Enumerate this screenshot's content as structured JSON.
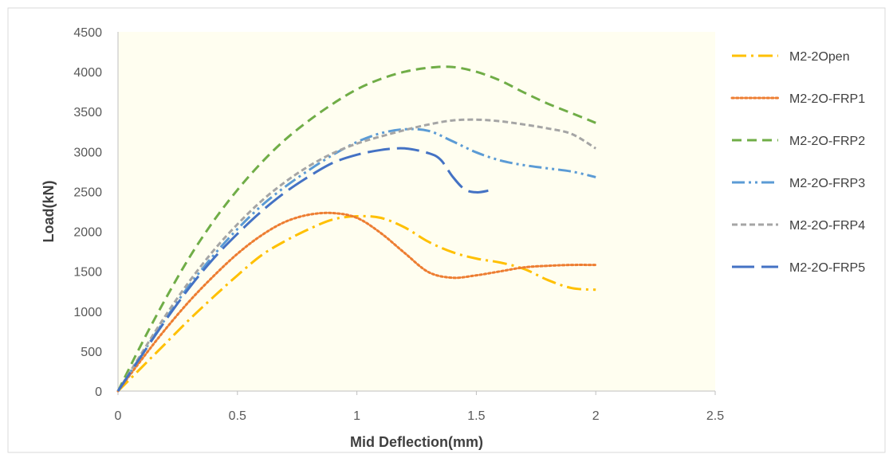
{
  "chart_data": {
    "type": "line",
    "title": "",
    "xlabel": "Mid Deflection(mm)",
    "ylabel": "Load(kN)",
    "xlim": [
      0,
      2.5
    ],
    "ylim": [
      0,
      4500
    ],
    "xticks": [
      0,
      0.5,
      1,
      1.5,
      2,
      2.5
    ],
    "xtick_labels": [
      "0",
      "0.5",
      "1",
      "1.5",
      "2",
      "2.5"
    ],
    "yticks": [
      0,
      500,
      1000,
      1500,
      2000,
      2500,
      3000,
      3500,
      4000,
      4500
    ],
    "ytick_labels": [
      "0",
      "500",
      "1000",
      "1500",
      "2000",
      "2500",
      "3000",
      "3500",
      "4000",
      "4500"
    ],
    "grid": false,
    "plot_background": "#fffef0",
    "legend_position": "right",
    "series": [
      {
        "name": "M2-2Open",
        "color": "#ffc000",
        "dash": "dashdot",
        "x": [
          0,
          0.1,
          0.2,
          0.3,
          0.4,
          0.5,
          0.6,
          0.7,
          0.8,
          0.9,
          1.0,
          1.1,
          1.2,
          1.3,
          1.4,
          1.5,
          1.6,
          1.7,
          1.8,
          1.9,
          2.0
        ],
        "y": [
          0,
          300,
          600,
          900,
          1180,
          1450,
          1700,
          1880,
          2030,
          2150,
          2190,
          2170,
          2050,
          1870,
          1740,
          1660,
          1610,
          1530,
          1390,
          1290,
          1270
        ]
      },
      {
        "name": "M2-2O-FRP1",
        "color": "#ed7d31",
        "dash": "dot",
        "x": [
          0,
          0.1,
          0.2,
          0.3,
          0.4,
          0.5,
          0.6,
          0.7,
          0.8,
          0.9,
          1.0,
          1.1,
          1.2,
          1.3,
          1.4,
          1.5,
          1.6,
          1.7,
          1.8,
          1.9,
          2.0
        ],
        "y": [
          0,
          400,
          780,
          1130,
          1440,
          1720,
          1950,
          2120,
          2210,
          2230,
          2170,
          1980,
          1730,
          1490,
          1420,
          1450,
          1500,
          1550,
          1570,
          1580,
          1580
        ]
      },
      {
        "name": "M2-2O-FRP2",
        "color": "#70ad47",
        "dash": "dash",
        "x": [
          0,
          0.1,
          0.2,
          0.3,
          0.4,
          0.5,
          0.6,
          0.7,
          0.8,
          0.9,
          1.0,
          1.1,
          1.2,
          1.3,
          1.4,
          1.5,
          1.6,
          1.7,
          1.8,
          1.9,
          2.0
        ],
        "y": [
          0,
          600,
          1160,
          1680,
          2130,
          2520,
          2860,
          3150,
          3390,
          3600,
          3780,
          3910,
          4000,
          4050,
          4060,
          4000,
          3890,
          3740,
          3600,
          3480,
          3360
        ]
      },
      {
        "name": "M2-2O-FRP3",
        "color": "#5b9bd5",
        "dash": "dashdotdot",
        "x": [
          0,
          0.1,
          0.2,
          0.3,
          0.4,
          0.5,
          0.6,
          0.7,
          0.8,
          0.9,
          1.0,
          1.1,
          1.2,
          1.3,
          1.4,
          1.5,
          1.6,
          1.7,
          1.8,
          1.9,
          2.0
        ],
        "y": [
          0,
          460,
          910,
          1330,
          1700,
          2030,
          2320,
          2560,
          2770,
          2960,
          3120,
          3230,
          3280,
          3260,
          3130,
          2990,
          2890,
          2830,
          2790,
          2750,
          2680
        ]
      },
      {
        "name": "M2-2O-FRP4",
        "color": "#a5a5a5",
        "dash": "dash-short",
        "x": [
          0,
          0.1,
          0.2,
          0.3,
          0.4,
          0.5,
          0.6,
          0.7,
          0.8,
          0.9,
          1.0,
          1.1,
          1.2,
          1.3,
          1.4,
          1.5,
          1.6,
          1.7,
          1.8,
          1.9,
          2.0
        ],
        "y": [
          0,
          480,
          950,
          1380,
          1760,
          2090,
          2380,
          2620,
          2820,
          2980,
          3100,
          3190,
          3270,
          3340,
          3390,
          3400,
          3380,
          3340,
          3290,
          3220,
          3040
        ]
      },
      {
        "name": "M2-2O-FRP5",
        "color": "#4472c4",
        "dash": "longdash",
        "x": [
          0,
          0.1,
          0.2,
          0.3,
          0.4,
          0.5,
          0.6,
          0.7,
          0.8,
          0.9,
          1.0,
          1.1,
          1.2,
          1.3,
          1.35,
          1.4,
          1.45,
          1.5,
          1.55
        ],
        "y": [
          0,
          450,
          890,
          1300,
          1660,
          1970,
          2250,
          2490,
          2690,
          2860,
          2960,
          3020,
          3040,
          2980,
          2900,
          2690,
          2530,
          2490,
          2510
        ]
      }
    ]
  }
}
